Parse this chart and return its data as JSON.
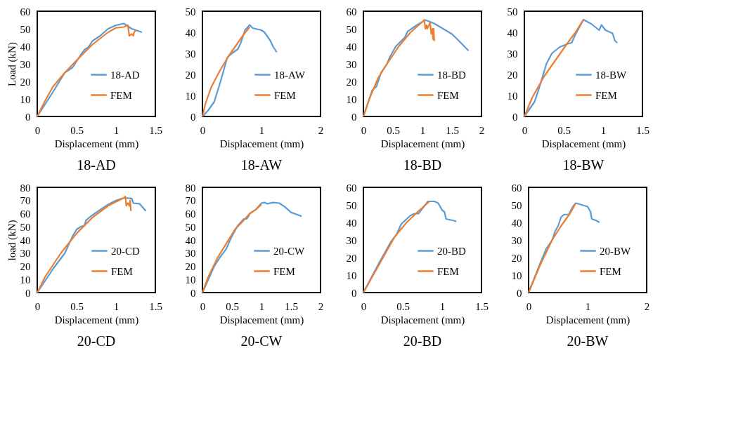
{
  "chart_data": [
    {
      "type": "line",
      "title": "18-AD",
      "xlabel": "Displacement (mm)",
      "ylabel": "Load (kN)",
      "xlim": [
        0,
        1.5
      ],
      "xticks": [
        0,
        0.5,
        1,
        1.5
      ],
      "ylim": [
        0,
        60
      ],
      "yticks": [
        0,
        10,
        20,
        30,
        40,
        50,
        60
      ],
      "grid": false,
      "legend": "bottom right",
      "series": [
        {
          "name": "18-AD",
          "color": "#5b9bd5",
          "x": [
            0,
            0.2,
            0.35,
            0.45,
            0.55,
            0.6,
            0.65,
            0.7,
            0.8,
            0.9,
            1.0,
            1.1,
            1.15,
            1.2,
            1.3,
            1.33
          ],
          "values": [
            0,
            14,
            25,
            28,
            35,
            38,
            39.5,
            43,
            46,
            50,
            52,
            53,
            51.5,
            50,
            48.5,
            48
          ]
        },
        {
          "name": "FEM",
          "color": "#ed7d31",
          "x": [
            0,
            0.1,
            0.2,
            0.35,
            0.5,
            0.7,
            0.9,
            1.0,
            1.1,
            1.15,
            1.17,
            1.2,
            1.22,
            1.23,
            1.25
          ],
          "values": [
            0,
            9,
            17,
            25,
            32,
            41,
            48,
            50.5,
            51,
            52,
            46,
            47,
            46,
            48,
            49
          ]
        }
      ]
    },
    {
      "type": "line",
      "title": "18-AW",
      "xlabel": "Displacement (mm)",
      "xlim": [
        0,
        2
      ],
      "xticks": [
        0,
        1,
        2
      ],
      "ylim": [
        0,
        50
      ],
      "yticks": [
        0,
        10,
        20,
        30,
        40,
        50
      ],
      "grid": false,
      "legend": "bottom right",
      "series": [
        {
          "name": "18-AW",
          "color": "#5b9bd5",
          "x": [
            0,
            0.1,
            0.2,
            0.3,
            0.42,
            0.5,
            0.6,
            0.65,
            0.72,
            0.8,
            0.85,
            1.0,
            1.05,
            1.15,
            1.2,
            1.26
          ],
          "values": [
            0,
            3,
            7,
            16,
            28,
            30,
            32,
            35,
            41,
            43.5,
            42,
            41,
            40,
            36,
            33,
            30.5
          ]
        },
        {
          "name": "FEM",
          "color": "#ed7d31",
          "x": [
            0,
            0.05,
            0.15,
            0.3,
            0.45,
            0.6,
            0.7,
            0.8
          ],
          "values": [
            0,
            6,
            14,
            22,
            29,
            35,
            39,
            42.5
          ]
        }
      ]
    },
    {
      "type": "line",
      "title": "18-BD",
      "xlabel": "Displacement (mm)",
      "xlim": [
        0,
        2
      ],
      "xticks": [
        0,
        0.5,
        1,
        1.5,
        2
      ],
      "ylim": [
        0,
        60
      ],
      "yticks": [
        0,
        10,
        20,
        30,
        40,
        50,
        60
      ],
      "grid": false,
      "legend": "bottom right",
      "series": [
        {
          "name": "18-BD",
          "color": "#5b9bd5",
          "x": [
            0,
            0.15,
            0.22,
            0.3,
            0.4,
            0.45,
            0.55,
            0.7,
            0.75,
            0.9,
            1.05,
            1.2,
            1.5,
            1.65,
            1.78
          ],
          "values": [
            0,
            15,
            17,
            25,
            30,
            34,
            40,
            45,
            48.5,
            52,
            55,
            53,
            47,
            42,
            37.5
          ]
        },
        {
          "name": "FEM",
          "color": "#ed7d31",
          "x": [
            0,
            0.1,
            0.25,
            0.4,
            0.6,
            0.8,
            1.0,
            1.03,
            1.05,
            1.07,
            1.08,
            1.13,
            1.15,
            1.17,
            1.18,
            1.19,
            1.2
          ],
          "values": [
            0,
            10,
            22,
            30,
            40,
            48,
            54,
            55,
            50,
            52,
            50,
            53.5,
            47,
            50,
            44,
            50,
            43
          ]
        }
      ]
    },
    {
      "type": "line",
      "title": "18-BW",
      "xlabel": "Displacement (mm)",
      "xlim": [
        0,
        1.5
      ],
      "xticks": [
        0,
        0.5,
        1,
        1.5
      ],
      "ylim": [
        0,
        50
      ],
      "yticks": [
        0,
        10,
        20,
        30,
        40,
        50
      ],
      "grid": false,
      "legend": "bottom right",
      "series": [
        {
          "name": "18-BW",
          "color": "#5b9bd5",
          "x": [
            0,
            0.13,
            0.2,
            0.28,
            0.35,
            0.45,
            0.55,
            0.6,
            0.65,
            0.75,
            0.85,
            0.95,
            0.98,
            1.03,
            1.12,
            1.15,
            1.18
          ],
          "values": [
            0,
            7,
            15,
            25,
            30,
            33,
            34.5,
            35,
            39,
            46,
            44,
            41,
            43.5,
            41,
            39.5,
            36,
            35
          ]
        },
        {
          "name": "FEM",
          "color": "#ed7d31",
          "x": [
            0,
            0.1,
            0.25,
            0.4,
            0.55,
            0.65,
            0.75
          ],
          "values": [
            0,
            9,
            19,
            27,
            35,
            40,
            46
          ]
        }
      ]
    },
    {
      "type": "line",
      "title": "20-CD",
      "xlabel": "Displacement (mm)",
      "ylabel": "load (kN)",
      "xlim": [
        0,
        1.5
      ],
      "xticks": [
        0,
        0.5,
        1,
        1.5
      ],
      "ylim": [
        0,
        80
      ],
      "yticks": [
        0,
        10,
        20,
        30,
        40,
        50,
        60,
        70,
        80
      ],
      "grid": false,
      "legend": "bottom right",
      "series": [
        {
          "name": "20-CD",
          "color": "#5b9bd5",
          "x": [
            0,
            0.2,
            0.35,
            0.45,
            0.5,
            0.55,
            0.6,
            0.62,
            0.68,
            0.8,
            0.9,
            1.0,
            1.1,
            1.2,
            1.22,
            1.3,
            1.38
          ],
          "values": [
            0,
            18,
            30,
            43,
            48,
            50,
            51,
            55,
            58,
            63,
            67,
            70,
            72,
            71.5,
            68,
            67.5,
            62
          ]
        },
        {
          "name": "FEM",
          "color": "#ed7d31",
          "x": [
            0,
            0.1,
            0.3,
            0.5,
            0.7,
            0.9,
            1.1,
            1.12,
            1.13,
            1.15,
            1.17,
            1.18,
            1.19
          ],
          "values": [
            0,
            12,
            30,
            45,
            57,
            66,
            72,
            73,
            66,
            68,
            66,
            70,
            62
          ]
        }
      ]
    },
    {
      "type": "line",
      "title": "20-CW",
      "xlabel": "Displacement (mm)",
      "xlim": [
        0,
        2
      ],
      "xticks": [
        0,
        0.5,
        1,
        1.5,
        2
      ],
      "ylim": [
        0,
        80
      ],
      "yticks": [
        0,
        10,
        20,
        30,
        40,
        50,
        60,
        70,
        80
      ],
      "grid": false,
      "legend": "bottom right",
      "series": [
        {
          "name": "20-CW",
          "color": "#5b9bd5",
          "x": [
            0,
            0.2,
            0.3,
            0.4,
            0.5,
            0.6,
            0.7,
            0.75,
            0.78,
            0.8,
            0.9,
            1.0,
            1.05,
            1.1,
            1.2,
            1.3,
            1.4,
            1.5,
            1.68
          ],
          "values": [
            0,
            20,
            27,
            33,
            43,
            51,
            56,
            56,
            58,
            60,
            63,
            68,
            68.5,
            67.5,
            68.5,
            68,
            65,
            61,
            58
          ]
        },
        {
          "name": "FEM",
          "color": "#ed7d31",
          "x": [
            0,
            0.1,
            0.25,
            0.4,
            0.55,
            0.7,
            0.8,
            0.9,
            1.0
          ],
          "values": [
            0,
            12,
            26,
            37,
            48,
            55,
            60,
            63,
            67
          ]
        }
      ]
    },
    {
      "type": "line",
      "title": "20-BD",
      "xlabel": "Displacement (mm)",
      "xlim": [
        0,
        1.5
      ],
      "xticks": [
        0,
        0.5,
        1,
        1.5
      ],
      "ylim": [
        0,
        60
      ],
      "yticks": [
        0,
        10,
        20,
        30,
        40,
        50,
        60
      ],
      "grid": false,
      "legend": "bottom right",
      "series": [
        {
          "name": "20-BD",
          "color": "#5b9bd5",
          "x": [
            0,
            0.2,
            0.35,
            0.42,
            0.48,
            0.55,
            0.6,
            0.65,
            0.7,
            0.75,
            0.82,
            0.9,
            0.95,
            1.0,
            1.03,
            1.05,
            1.15,
            1.18
          ],
          "values": [
            0,
            17,
            29,
            33,
            39,
            42,
            44,
            45,
            45,
            48,
            52,
            52,
            51,
            47,
            46,
            42,
            41,
            40.5
          ]
        },
        {
          "name": "FEM",
          "color": "#ed7d31",
          "x": [
            0,
            0.2,
            0.4,
            0.55,
            0.7,
            0.84
          ],
          "values": [
            0,
            16,
            32,
            40,
            46.5,
            52
          ]
        }
      ]
    },
    {
      "type": "line",
      "title": "20-BW",
      "xlabel": "Displacement (mm)",
      "xlim": [
        0,
        2
      ],
      "xticks": [
        0,
        1,
        2
      ],
      "ylim": [
        0,
        60
      ],
      "yticks": [
        0,
        10,
        20,
        30,
        40,
        50,
        60
      ],
      "grid": false,
      "legend": "bottom right",
      "series": [
        {
          "name": "20-BW",
          "color": "#5b9bd5",
          "x": [
            0,
            0.2,
            0.3,
            0.4,
            0.45,
            0.5,
            0.55,
            0.6,
            0.68,
            0.75,
            0.8,
            0.9,
            1.0,
            1.05,
            1.07,
            1.15,
            1.2
          ],
          "values": [
            0,
            17,
            25,
            30,
            35,
            38,
            43,
            44.5,
            44.5,
            49,
            51,
            50,
            49,
            46,
            42,
            41,
            40
          ]
        },
        {
          "name": "FEM",
          "color": "#ed7d31",
          "x": [
            0,
            0.2,
            0.4,
            0.55,
            0.7,
            0.8
          ],
          "values": [
            0,
            16,
            30,
            38,
            45,
            51
          ]
        }
      ]
    }
  ]
}
